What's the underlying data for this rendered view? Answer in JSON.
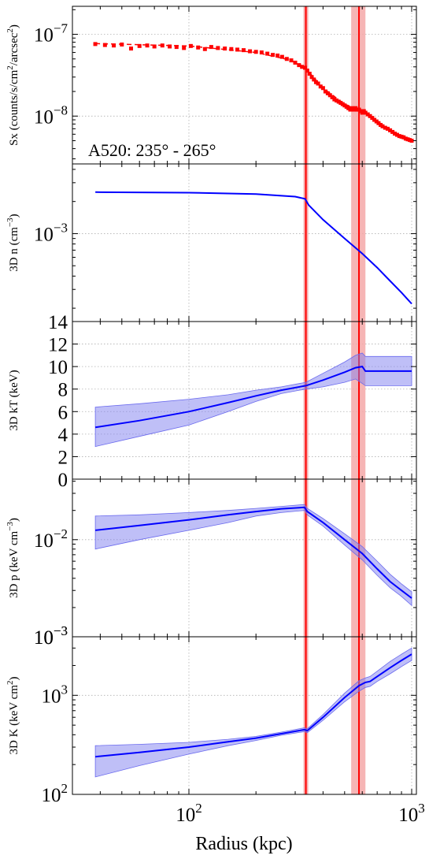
{
  "figure": {
    "annotation": "A520: 235° - 265°",
    "xlabel": "Radius (kpc)",
    "x_ticks": [
      "10^2",
      "10^3"
    ],
    "xlim": [
      30,
      1050
    ],
    "x_scale": "log",
    "grid": "dotted gray",
    "shock_line": {
      "x": 335,
      "color": "#ff0000"
    },
    "shock_line_2": {
      "x": 580,
      "color": "#ff0000"
    },
    "shock_band": {
      "x0": 535,
      "x1": 620,
      "color": "#f4a8a8"
    }
  },
  "chart_data": [
    {
      "name": "sx",
      "type": "scatter",
      "ylabel_pre": "Sx (counts/s/cm",
      "ylabel_sup1": "2",
      "ylabel_mid": "/arcsec",
      "ylabel_sup2": "2",
      "ylabel_post": ")",
      "y_scale": "log",
      "ylim": [
        2.6e-09,
        2.2e-07
      ],
      "y_ticks": [
        {
          "v": 1e-07,
          "base": "10",
          "exp": "−7"
        },
        {
          "v": 1e-08,
          "base": "10",
          "exp": "−8"
        }
      ],
      "color": "#ff0000",
      "points": [
        [
          38,
          7.6e-08
        ],
        [
          42,
          7.4e-08
        ],
        [
          46,
          7.3e-08
        ],
        [
          50,
          7.5e-08
        ],
        [
          55,
          6.7e-08
        ],
        [
          60,
          7.2e-08
        ],
        [
          65,
          7.3e-08
        ],
        [
          70,
          7.1e-08
        ],
        [
          76,
          7.3e-08
        ],
        [
          82,
          7.1e-08
        ],
        [
          88,
          7e-08
        ],
        [
          95,
          6.8e-08
        ],
        [
          102,
          7.2e-08
        ],
        [
          110,
          6.9e-08
        ],
        [
          118,
          6.6e-08
        ],
        [
          126,
          7e-08
        ],
        [
          135,
          6.8e-08
        ],
        [
          145,
          6.7e-08
        ],
        [
          155,
          6.6e-08
        ],
        [
          165,
          6.5e-08
        ],
        [
          176,
          6.4e-08
        ],
        [
          188,
          6.2e-08
        ],
        [
          200,
          6.1e-08
        ],
        [
          212,
          6e-08
        ],
        [
          225,
          5.8e-08
        ],
        [
          238,
          5.6e-08
        ],
        [
          250,
          5.5e-08
        ],
        [
          262,
          5.3e-08
        ],
        [
          275,
          5e-08
        ],
        [
          288,
          4.8e-08
        ],
        [
          300,
          4.5e-08
        ],
        [
          312,
          4.2e-08
        ],
        [
          322,
          4e-08
        ],
        [
          332,
          3.9e-08
        ],
        [
          340,
          3.6e-08
        ],
        [
          348,
          3.3e-08
        ],
        [
          356,
          3e-08
        ],
        [
          364,
          2.8e-08
        ],
        [
          372,
          2.6e-08
        ],
        [
          380,
          2.5e-08
        ],
        [
          390,
          2.3e-08
        ],
        [
          400,
          2.2e-08
        ],
        [
          410,
          2e-08
        ],
        [
          420,
          1.9e-08
        ],
        [
          430,
          1.8e-08
        ],
        [
          440,
          1.7e-08
        ],
        [
          450,
          1.6e-08
        ],
        [
          460,
          1.55e-08
        ],
        [
          470,
          1.5e-08
        ],
        [
          480,
          1.45e-08
        ],
        [
          490,
          1.4e-08
        ],
        [
          500,
          1.35e-08
        ],
        [
          510,
          1.3e-08
        ],
        [
          520,
          1.25e-08
        ],
        [
          530,
          1.2e-08
        ],
        [
          540,
          1.25e-08
        ],
        [
          550,
          1.2e-08
        ],
        [
          560,
          1.25e-08
        ],
        [
          570,
          1.2e-08
        ],
        [
          580,
          1.2e-08
        ],
        [
          590,
          1.15e-08
        ],
        [
          600,
          1.1e-08
        ],
        [
          610,
          1.15e-08
        ],
        [
          620,
          1.1e-08
        ],
        [
          635,
          1.05e-08
        ],
        [
          650,
          1e-08
        ],
        [
          665,
          9.5e-09
        ],
        [
          680,
          9e-09
        ],
        [
          695,
          8.6e-09
        ],
        [
          710,
          8.2e-09
        ],
        [
          725,
          7.8e-09
        ],
        [
          740,
          7.5e-09
        ],
        [
          760,
          7.2e-09
        ],
        [
          780,
          7e-09
        ],
        [
          800,
          6.7e-09
        ],
        [
          820,
          6.4e-09
        ],
        [
          840,
          6.1e-09
        ],
        [
          860,
          5.9e-09
        ],
        [
          880,
          5.7e-09
        ],
        [
          900,
          5.6e-09
        ],
        [
          920,
          5.5e-09
        ],
        [
          940,
          5.3e-09
        ],
        [
          960,
          5.2e-09
        ],
        [
          980,
          5.1e-09
        ],
        [
          1000,
          5e-09
        ]
      ],
      "model": [
        [
          38,
          7.7e-08
        ],
        [
          100,
          7.2e-08
        ],
        [
          200,
          6e-08
        ],
        [
          280,
          4.9e-08
        ],
        [
          330,
          4e-08
        ],
        [
          400,
          2.2e-08
        ],
        [
          500,
          1.4e-08
        ],
        [
          600,
          1.15e-08
        ],
        [
          700,
          8.6e-09
        ],
        [
          850,
          6.2e-09
        ],
        [
          1000,
          5e-09
        ]
      ]
    },
    {
      "name": "density",
      "type": "line",
      "ylabel_pre": "3D n (cm",
      "ylabel_sup1": "−3",
      "ylabel_post": ")",
      "y_scale": "log",
      "ylim": [
        0.00015,
        0.0045
      ],
      "y_ticks": [
        {
          "v": 0.001,
          "base": "10",
          "exp": "−3"
        }
      ],
      "color": "#0000ff",
      "line": [
        [
          38,
          0.00245
        ],
        [
          100,
          0.00242
        ],
        [
          200,
          0.00235
        ],
        [
          300,
          0.00222
        ],
        [
          332,
          0.00212
        ],
        [
          345,
          0.00185
        ],
        [
          400,
          0.00135
        ],
        [
          500,
          0.0009
        ],
        [
          600,
          0.00065
        ],
        [
          700,
          0.00048
        ],
        [
          800,
          0.00036
        ],
        [
          900,
          0.00028
        ],
        [
          1000,
          0.00022
        ]
      ]
    },
    {
      "name": "temperature",
      "type": "area",
      "ylabel_pre": "3D kT (keV)",
      "y_scale": "linear",
      "ylim": [
        0,
        14
      ],
      "y_ticks": [
        {
          "v": 0,
          "label": "0"
        },
        {
          "v": 2,
          "label": "2"
        },
        {
          "v": 4,
          "label": "4"
        },
        {
          "v": 6,
          "label": "6"
        },
        {
          "v": 8,
          "label": "8"
        },
        {
          "v": 10,
          "label": "10"
        },
        {
          "v": 12,
          "label": "12"
        },
        {
          "v": 14,
          "label": "14"
        }
      ],
      "color": "#0000ff",
      "line": [
        [
          38,
          4.6
        ],
        [
          60,
          5.2
        ],
        [
          100,
          6.0
        ],
        [
          150,
          6.8
        ],
        [
          200,
          7.4
        ],
        [
          260,
          7.9
        ],
        [
          335,
          8.3
        ],
        [
          400,
          8.8
        ],
        [
          500,
          9.5
        ],
        [
          560,
          9.9
        ],
        [
          600,
          10.0
        ],
        [
          620,
          9.6
        ],
        [
          700,
          9.6
        ],
        [
          850,
          9.6
        ],
        [
          1000,
          9.6
        ]
      ],
      "upper": [
        [
          38,
          6.4
        ],
        [
          60,
          6.7
        ],
        [
          100,
          7.1
        ],
        [
          150,
          7.5
        ],
        [
          200,
          7.9
        ],
        [
          260,
          8.2
        ],
        [
          335,
          8.6
        ],
        [
          400,
          9.4
        ],
        [
          500,
          10.4
        ],
        [
          560,
          11.0
        ],
        [
          600,
          11.2
        ],
        [
          620,
          10.9
        ],
        [
          700,
          10.9
        ],
        [
          850,
          10.9
        ],
        [
          1000,
          10.9
        ]
      ],
      "lower": [
        [
          38,
          2.9
        ],
        [
          60,
          3.8
        ],
        [
          100,
          4.8
        ],
        [
          150,
          6.0
        ],
        [
          200,
          6.9
        ],
        [
          260,
          7.6
        ],
        [
          335,
          8.0
        ],
        [
          400,
          8.2
        ],
        [
          500,
          8.6
        ],
        [
          560,
          8.9
        ],
        [
          600,
          8.5
        ],
        [
          620,
          8.3
        ],
        [
          700,
          8.3
        ],
        [
          850,
          8.3
        ],
        [
          1000,
          8.3
        ]
      ]
    },
    {
      "name": "pressure",
      "type": "area",
      "ylabel_pre": "3D p (keV cm",
      "ylabel_sup1": "−3",
      "ylabel_post": ")",
      "y_scale": "log",
      "ylim": [
        0.001,
        0.042
      ],
      "y_ticks": [
        {
          "v": 0.01,
          "base": "10",
          "exp": "−2"
        },
        {
          "v": 0.001,
          "base": "10",
          "exp": "−3"
        }
      ],
      "color": "#0000ff",
      "line": [
        [
          38,
          0.0125
        ],
        [
          60,
          0.014
        ],
        [
          100,
          0.016
        ],
        [
          150,
          0.018
        ],
        [
          200,
          0.0195
        ],
        [
          260,
          0.0208
        ],
        [
          330,
          0.0215
        ],
        [
          340,
          0.0195
        ],
        [
          400,
          0.015
        ],
        [
          500,
          0.01
        ],
        [
          600,
          0.0072
        ],
        [
          700,
          0.005
        ],
        [
          800,
          0.0037
        ],
        [
          900,
          0.003
        ],
        [
          1000,
          0.0025
        ]
      ],
      "upper": [
        [
          38,
          0.0175
        ],
        [
          60,
          0.018
        ],
        [
          100,
          0.019
        ],
        [
          150,
          0.02
        ],
        [
          200,
          0.021
        ],
        [
          260,
          0.022
        ],
        [
          330,
          0.023
        ],
        [
          340,
          0.021
        ],
        [
          400,
          0.0165
        ],
        [
          500,
          0.0115
        ],
        [
          600,
          0.0085
        ],
        [
          700,
          0.006
        ],
        [
          800,
          0.0044
        ],
        [
          900,
          0.0035
        ],
        [
          1000,
          0.0029
        ]
      ],
      "lower": [
        [
          38,
          0.008
        ],
        [
          60,
          0.01
        ],
        [
          100,
          0.0125
        ],
        [
          150,
          0.015
        ],
        [
          200,
          0.0175
        ],
        [
          260,
          0.019
        ],
        [
          330,
          0.02
        ],
        [
          340,
          0.018
        ],
        [
          400,
          0.0138
        ],
        [
          500,
          0.0088
        ],
        [
          600,
          0.0062
        ],
        [
          700,
          0.0043
        ],
        [
          800,
          0.0032
        ],
        [
          900,
          0.0026
        ],
        [
          1000,
          0.0021
        ]
      ]
    },
    {
      "name": "entropy",
      "type": "area",
      "ylabel_pre": "3D K (keV cm",
      "ylabel_sup1": "2",
      "ylabel_post": ")",
      "y_scale": "log",
      "ylim": [
        100,
        3900
      ],
      "y_ticks": [
        {
          "v": 1000,
          "base": "10",
          "exp": "3"
        },
        {
          "v": 100,
          "base": "10",
          "exp": "2"
        }
      ],
      "extra_top_tick": {
        "base": "10",
        "exp": "−3"
      },
      "color": "#0000ff",
      "line": [
        [
          38,
          240
        ],
        [
          60,
          265
        ],
        [
          100,
          300
        ],
        [
          150,
          340
        ],
        [
          200,
          370
        ],
        [
          260,
          410
        ],
        [
          330,
          450
        ],
        [
          340,
          440
        ],
        [
          400,
          600
        ],
        [
          500,
          950
        ],
        [
          580,
          1250
        ],
        [
          620,
          1350
        ],
        [
          650,
          1380
        ],
        [
          700,
          1550
        ],
        [
          800,
          1900
        ],
        [
          900,
          2250
        ],
        [
          1000,
          2600
        ]
      ],
      "upper": [
        [
          38,
          310
        ],
        [
          60,
          320
        ],
        [
          100,
          335
        ],
        [
          150,
          360
        ],
        [
          200,
          385
        ],
        [
          260,
          425
        ],
        [
          330,
          470
        ],
        [
          340,
          460
        ],
        [
          400,
          640
        ],
        [
          500,
          1050
        ],
        [
          580,
          1400
        ],
        [
          620,
          1500
        ],
        [
          650,
          1550
        ],
        [
          700,
          1750
        ],
        [
          800,
          2200
        ],
        [
          900,
          2600
        ],
        [
          1000,
          3000
        ]
      ],
      "lower": [
        [
          38,
          150
        ],
        [
          60,
          195
        ],
        [
          100,
          255
        ],
        [
          150,
          310
        ],
        [
          200,
          350
        ],
        [
          260,
          395
        ],
        [
          330,
          430
        ],
        [
          340,
          420
        ],
        [
          400,
          560
        ],
        [
          500,
          860
        ],
        [
          580,
          1100
        ],
        [
          620,
          1200
        ],
        [
          650,
          1230
        ],
        [
          700,
          1380
        ],
        [
          800,
          1650
        ],
        [
          900,
          1950
        ],
        [
          1000,
          2250
        ]
      ]
    }
  ]
}
